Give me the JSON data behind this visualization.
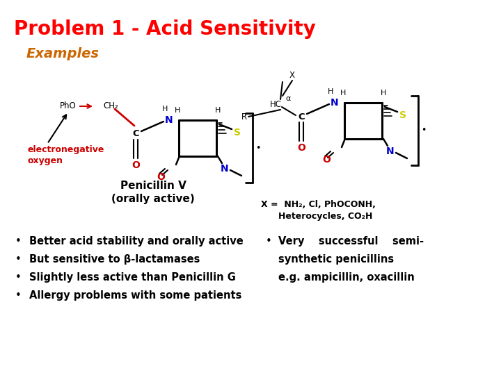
{
  "title": "Problem 1 - Acid Sensitivity",
  "title_color": "#FF0000",
  "title_fontsize": 20,
  "subtitle": "Examples",
  "subtitle_color": "#CC6600",
  "subtitle_fontsize": 14,
  "background_color": "#FFFFFF",
  "black": "#000000",
  "red": "#CC0000",
  "blue": "#0000CC",
  "yellow": "#CCCC00",
  "bullet_left": [
    "Better acid stability and orally active",
    "But sensitive to β-lactamases",
    "Slightly less active than Penicillin G",
    "Allergy problems with some patients"
  ],
  "bullet_right_line1": "Very    successful    semi-",
  "bullet_right_line2": "synthetic penicillins",
  "bullet_right_line3": "e.g. ampicillin, oxacillin"
}
